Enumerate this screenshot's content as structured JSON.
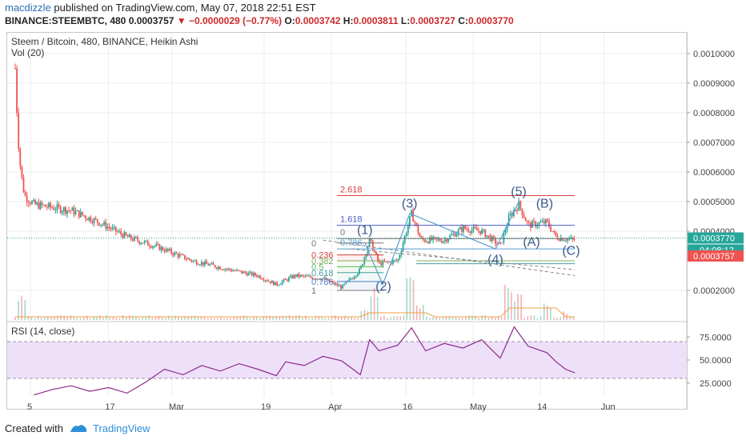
{
  "header": {
    "user": "macdizzle",
    "published": " published on TradingView.com, May 07, 2018 22:51 EST",
    "ticker_line_a": "BINANCE:STEEMBTC, 480  0.0003757 ",
    "change": "▼ −0.0000029 (−0.77%)",
    "o_label": " O:",
    "o_val": "0.0003742",
    "h_label": " H:",
    "h_val": "0.0003811",
    "l_label": " L:",
    "l_val": "0.0003727",
    "c_label": " C:",
    "c_val": "0.0003770"
  },
  "chart_title": "Steem / Bitcoin, 480, BINANCE, Heikin Ashi",
  "volume_label": "Vol (20)",
  "rsi_label": "RSI (14, close)",
  "footer": {
    "created_with": "Created with",
    "brand": "TradingView"
  },
  "colors": {
    "up": "#26a69a",
    "down": "#ef5350",
    "rsi_line": "#8a2c8a",
    "rsi_band": "#efe0fa",
    "grid": "#ececec",
    "fib_red": "#d44040",
    "fib_blue": "#4a5cc9",
    "wave_line": "#5a9fd4"
  },
  "chart_data": [
    {
      "type": "candlestick",
      "title": "Steem / Bitcoin, 480, BINANCE, Heikin Ashi",
      "x_ticks": [
        "5",
        "17",
        "Mar",
        "19",
        "Apr",
        "16",
        "May",
        "14",
        "Jun"
      ],
      "y_ticks": [
        "0.0010000",
        "0.0009000",
        "0.0008000",
        "0.0007000",
        "0.0006000",
        "0.0005000",
        "0.0004000",
        "0.0002000"
      ],
      "ylim": [
        0.0001,
        0.00107
      ],
      "last_price": "0.0003770",
      "countdown": "04:08:12",
      "prev_price": "0.0003757",
      "price_path": [
        {
          "x": 0,
          "y": 0.00095
        },
        {
          "x": 0.3,
          "y": 0.00072
        },
        {
          "x": 0.6,
          "y": 0.0006
        },
        {
          "x": 1.0,
          "y": 0.00052
        },
        {
          "x": 2.0,
          "y": 0.00049
        },
        {
          "x": 4.0,
          "y": 0.00048
        },
        {
          "x": 6.0,
          "y": 0.00047
        },
        {
          "x": 9.0,
          "y": 0.00043
        },
        {
          "x": 12.0,
          "y": 0.00038
        },
        {
          "x": 15.0,
          "y": 0.00035
        },
        {
          "x": 19.0,
          "y": 0.0003
        },
        {
          "x": 23.0,
          "y": 0.00027
        },
        {
          "x": 26.0,
          "y": 0.00025
        },
        {
          "x": 28.0,
          "y": 0.00022
        },
        {
          "x": 30.0,
          "y": 0.00025
        },
        {
          "x": 33.0,
          "y": 0.00024
        },
        {
          "x": 35.0,
          "y": 0.00021
        },
        {
          "x": 37.0,
          "y": 0.00027
        },
        {
          "x": 38.0,
          "y": 0.00037
        },
        {
          "x": 39.0,
          "y": 0.00029
        },
        {
          "x": 41.0,
          "y": 0.0003
        },
        {
          "x": 42.5,
          "y": 0.00046
        },
        {
          "x": 43.5,
          "y": 0.00037
        },
        {
          "x": 46.0,
          "y": 0.00037
        },
        {
          "x": 48.0,
          "y": 0.00041
        },
        {
          "x": 50.0,
          "y": 0.0004
        },
        {
          "x": 52.0,
          "y": 0.00035
        },
        {
          "x": 53.0,
          "y": 0.00045
        },
        {
          "x": 54.0,
          "y": 0.00049
        },
        {
          "x": 55.0,
          "y": 0.00042
        },
        {
          "x": 57.0,
          "y": 0.00043
        },
        {
          "x": 58.0,
          "y": 0.00038
        },
        {
          "x": 60.0,
          "y": 0.00037
        }
      ],
      "annotations": {
        "waves": [
          {
            "label": "(1)",
            "x": 37.5,
            "y": 0.00039
          },
          {
            "label": "(2)",
            "x": 39.5,
            "y": 0.0002
          },
          {
            "label": "(3)",
            "x": 42.3,
            "y": 0.00048
          },
          {
            "label": "(4)",
            "x": 51.5,
            "y": 0.00029
          },
          {
            "label": "(5)",
            "x": 54.0,
            "y": 0.00052
          },
          {
            "label": "(A)",
            "x": 55.3,
            "y": 0.00035
          },
          {
            "label": "(B)",
            "x": 56.7,
            "y": 0.00048
          },
          {
            "label": "(C)",
            "x": 59.5,
            "y": 0.00032
          }
        ],
        "fib_small": [
          {
            "label": "0",
            "y": 0.00036
          },
          {
            "label": "0.236",
            "y": 0.00032
          },
          {
            "label": "0.382",
            "y": 0.0003
          },
          {
            "label": "0.5",
            "y": 0.00028
          },
          {
            "label": "0.618",
            "y": 0.00026
          },
          {
            "label": "0.786",
            "y": 0.00023
          },
          {
            "label": "1",
            "y": 0.0002
          }
        ],
        "fib_ext": [
          {
            "label": "2.618",
            "y": 0.00052
          },
          {
            "label": "1.618",
            "y": 0.00042
          },
          {
            "label": "0.786",
            "y": 0.00034
          },
          {
            "label": "0",
            "y": 0.000375
          }
        ]
      }
    },
    {
      "type": "line",
      "title": "RSI (14, close)",
      "y_ticks": [
        "75.0000",
        "50.0000",
        "25.0000"
      ],
      "ylim": [
        10,
        90
      ],
      "band": [
        30,
        70
      ],
      "series": [
        {
          "values": [
            {
              "x": 2,
              "y": 12
            },
            {
              "x": 4,
              "y": 18
            },
            {
              "x": 6,
              "y": 22
            },
            {
              "x": 8,
              "y": 16
            },
            {
              "x": 10,
              "y": 20
            },
            {
              "x": 12,
              "y": 14
            },
            {
              "x": 14,
              "y": 26
            },
            {
              "x": 16,
              "y": 40
            },
            {
              "x": 18,
              "y": 34
            },
            {
              "x": 20,
              "y": 44
            },
            {
              "x": 22,
              "y": 38
            },
            {
              "x": 24,
              "y": 46
            },
            {
              "x": 26,
              "y": 40
            },
            {
              "x": 28,
              "y": 33
            },
            {
              "x": 29,
              "y": 48
            },
            {
              "x": 31,
              "y": 44
            },
            {
              "x": 33,
              "y": 54
            },
            {
              "x": 35,
              "y": 49
            },
            {
              "x": 37,
              "y": 34
            },
            {
              "x": 38,
              "y": 72
            },
            {
              "x": 39,
              "y": 60
            },
            {
              "x": 41,
              "y": 66
            },
            {
              "x": 42.5,
              "y": 85
            },
            {
              "x": 44,
              "y": 60
            },
            {
              "x": 46,
              "y": 68
            },
            {
              "x": 48,
              "y": 63
            },
            {
              "x": 50,
              "y": 72
            },
            {
              "x": 52,
              "y": 52
            },
            {
              "x": 53.5,
              "y": 86
            },
            {
              "x": 55,
              "y": 65
            },
            {
              "x": 57,
              "y": 58
            },
            {
              "x": 58,
              "y": 48
            },
            {
              "x": 59,
              "y": 40
            },
            {
              "x": 60,
              "y": 36
            }
          ]
        }
      ]
    }
  ]
}
